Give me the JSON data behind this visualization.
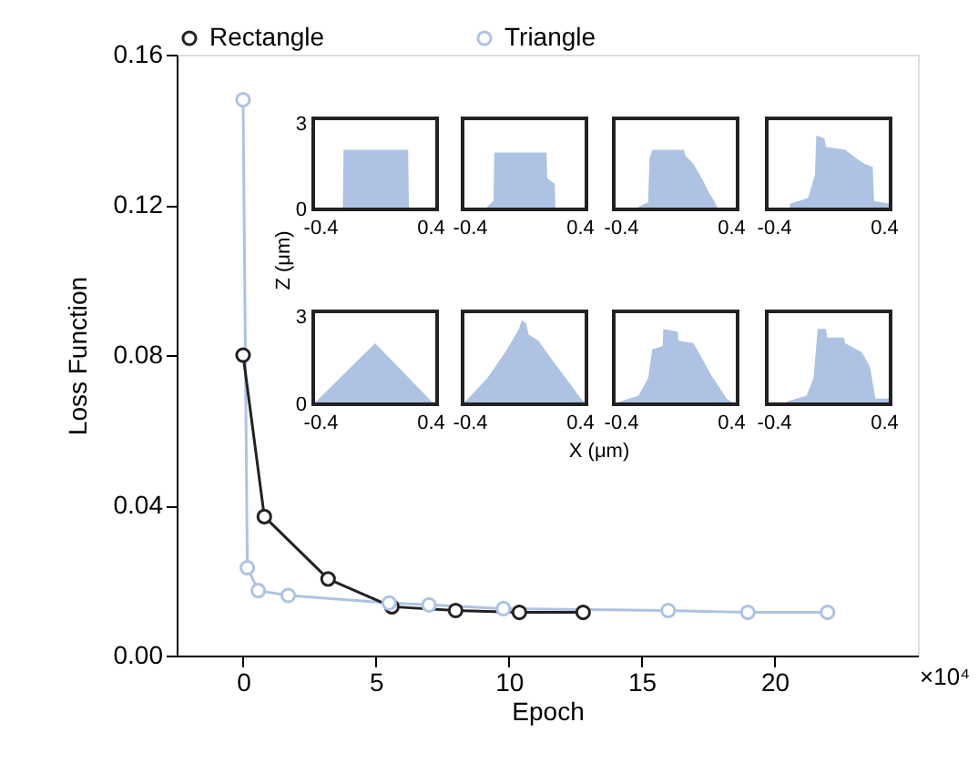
{
  "chart_data": [
    {
      "type": "line",
      "xlabel": "Epoch",
      "ylabel": "Loss Function",
      "xlim": [
        -2.5,
        25.4
      ],
      "xticks": [
        0,
        5,
        10,
        15,
        20
      ],
      "ylim": [
        0,
        0.16
      ],
      "yticks": [
        {
          "value": 0,
          "label": "0.00"
        },
        {
          "value": 0.04,
          "label": "0.04"
        },
        {
          "value": 0.08,
          "label": "0.08"
        },
        {
          "value": 0.12,
          "label": "0.12"
        },
        {
          "value": 0.16,
          "label": "0.16"
        }
      ],
      "grid": false,
      "legend": "top",
      "marker": "circle",
      "line_style": "solid",
      "annotations": [
        "×10⁴"
      ],
      "series": [
        {
          "name": "Rectangle",
          "color": "#222222",
          "x": [
            0,
            0.8,
            3.2,
            5.6,
            8,
            10.4,
            12.8
          ],
          "values": [
            0.08,
            0.037,
            0.0204,
            0.013,
            0.012,
            0.0115,
            0.0115
          ]
        },
        {
          "name": "Triangle",
          "color": "#aec3e3",
          "x": [
            0,
            0.16,
            0.57,
            1.7,
            5.5,
            7,
            9.8,
            16,
            19,
            22
          ],
          "values": [
            0.148,
            0.0234,
            0.0173,
            0.016,
            0.014,
            0.0135,
            0.0125,
            0.012,
            0.0115,
            0.0115
          ]
        }
      ]
    },
    {
      "type": "area",
      "color": "#aec3e3",
      "xlim": [
        -0.45,
        0.45
      ],
      "ylim": [
        0,
        3.2
      ],
      "xticks": [
        -0.4,
        0.4
      ],
      "yticks": [
        0,
        3
      ],
      "x": [
        -0.45,
        -0.235,
        -0.23,
        0.24,
        0.245,
        0.45
      ],
      "values": [
        0,
        0,
        2.1,
        2.1,
        0,
        0
      ]
    },
    {
      "type": "area",
      "color": "#aec3e3",
      "xlim": [
        -0.45,
        0.45
      ],
      "ylim": [
        0,
        3.2
      ],
      "xticks": [
        -0.4,
        0.4
      ],
      "tick_labels": "x",
      "x": [
        -0.45,
        -0.275,
        -0.27,
        -0.225,
        -0.22,
        0.16,
        0.165,
        0.22,
        0.225,
        0.45
      ],
      "values": [
        0,
        0,
        0.1,
        0.3,
        2.0,
        2.0,
        1.1,
        0.9,
        0,
        0
      ]
    },
    {
      "type": "area",
      "color": "#aec3e3",
      "xlim": [
        -0.45,
        0.45
      ],
      "ylim": [
        0,
        3.2
      ],
      "xticks": [
        -0.4,
        0.4
      ],
      "tick_labels": "x",
      "x": [
        -0.45,
        -0.275,
        -0.27,
        -0.2,
        -0.19,
        -0.17,
        0.06,
        0.07,
        0.13,
        0.2,
        0.24,
        0.28,
        0.3,
        0.305,
        0.45
      ],
      "values": [
        0,
        0,
        0.1,
        0.25,
        1.8,
        2.1,
        2.1,
        1.9,
        1.6,
        1.0,
        0.6,
        0.3,
        0.1,
        0,
        0
      ]
    },
    {
      "type": "area",
      "color": "#aec3e3",
      "xlim": [
        -0.45,
        0.45
      ],
      "ylim": [
        0,
        3.2
      ],
      "xticks": [
        -0.4,
        0.4
      ],
      "tick_labels": "x",
      "x": [
        -0.45,
        -0.285,
        -0.28,
        -0.15,
        -0.1,
        -0.09,
        -0.03,
        -0.02,
        0.12,
        0.2,
        0.26,
        0.32,
        0.33,
        0.44,
        0.45
      ],
      "values": [
        0,
        0,
        0.2,
        0.4,
        1.2,
        2.6,
        2.5,
        2.2,
        2.1,
        1.8,
        1.6,
        1.5,
        0.3,
        0.2,
        0
      ]
    },
    {
      "type": "area",
      "color": "#aec3e3",
      "xlim": [
        -0.45,
        0.45
      ],
      "ylim": [
        0,
        3.2
      ],
      "xticks": [
        -0.4,
        0.4
      ],
      "yticks": [
        0,
        3
      ],
      "ylabel": "Z (μm)",
      "x": [
        -0.45,
        0.0,
        0.43,
        0.45
      ],
      "values": [
        0,
        2.1,
        0,
        0
      ]
    },
    {
      "type": "area",
      "color": "#aec3e3",
      "xlim": [
        -0.45,
        0.45
      ],
      "ylim": [
        0,
        3.2
      ],
      "xticks": [
        -0.4,
        0.4
      ],
      "tick_labels": "x",
      "xlabel": "X (μm)",
      "x": [
        -0.45,
        -0.41,
        -0.27,
        -0.14,
        -0.04,
        -0.02,
        0.01,
        0.03,
        0.1,
        0.19,
        0.3,
        0.41,
        0.45
      ],
      "values": [
        0,
        0.2,
        0.9,
        1.8,
        2.6,
        2.9,
        2.8,
        2.4,
        2.2,
        1.6,
        0.9,
        0.2,
        0
      ]
    },
    {
      "type": "area",
      "color": "#aec3e3",
      "xlim": [
        -0.45,
        0.45
      ],
      "ylim": [
        0,
        3.2
      ],
      "xticks": [
        -0.4,
        0.4
      ],
      "tick_labels": "x",
      "x": [
        -0.45,
        -0.4,
        -0.27,
        -0.2,
        -0.17,
        -0.095,
        -0.09,
        0.015,
        0.02,
        0.13,
        0.26,
        0.37,
        0.4,
        0.45
      ],
      "values": [
        0,
        0.1,
        0.3,
        0.9,
        1.9,
        2.0,
        2.6,
        2.5,
        2.2,
        2.1,
        1.0,
        0.2,
        0.1,
        0
      ]
    },
    {
      "type": "area",
      "color": "#aec3e3",
      "xlim": [
        -0.45,
        0.45
      ],
      "ylim": [
        0,
        3.2
      ],
      "xticks": [
        -0.4,
        0.4
      ],
      "tick_labels": "x",
      "x": [
        -0.45,
        -0.305,
        -0.3,
        -0.16,
        -0.11,
        -0.08,
        -0.02,
        -0.01,
        0.11,
        0.12,
        0.24,
        0.3,
        0.34,
        0.45
      ],
      "values": [
        0,
        0,
        0.1,
        0.3,
        0.9,
        2.6,
        2.6,
        2.3,
        2.3,
        2.1,
        1.8,
        1.3,
        0.2,
        0.2
      ]
    }
  ]
}
